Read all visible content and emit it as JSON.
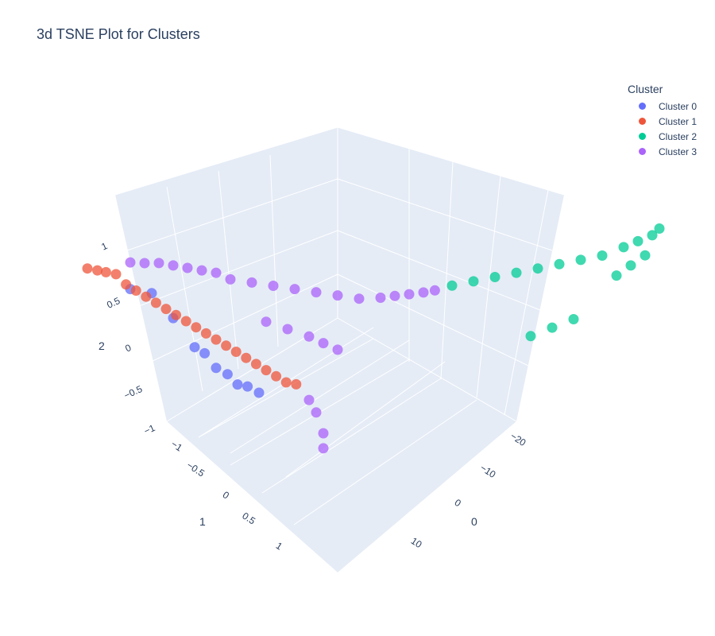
{
  "chart_data": {
    "type": "scatter",
    "title": "3d TSNE Plot for Clusters",
    "legend": {
      "title": "Cluster",
      "placement": "top-right"
    },
    "axes": {
      "tsne1": {
        "title": "0",
        "ticks": [
          "−20",
          "−10",
          "0",
          "10"
        ]
      },
      "tsne2": {
        "title": "1",
        "ticks": [
          "−1",
          "−0.5",
          "0",
          "0.5",
          "1"
        ]
      },
      "tsne3": {
        "title": "2",
        "ticks": [
          "−1",
          "−0.5",
          "0",
          "0.5",
          "1"
        ]
      }
    },
    "grid": true,
    "series": [
      {
        "name": "Cluster 0",
        "color": "#636efa",
        "points": [
          [
            12,
            -0.85,
            0.55
          ],
          [
            10,
            -0.8,
            0.45
          ],
          [
            8,
            -0.75,
            0.1
          ],
          [
            6,
            -0.7,
            -0.3
          ],
          [
            5,
            -0.68,
            -0.4
          ],
          [
            4,
            -0.65,
            -0.6
          ],
          [
            3,
            -0.62,
            -0.7
          ],
          [
            2,
            -0.6,
            -0.85
          ],
          [
            1,
            -0.58,
            -0.9
          ],
          [
            0,
            -0.55,
            -1.0
          ]
        ]
      },
      {
        "name": "Cluster 1",
        "color": "#ef553b",
        "points": [
          [
            16,
            -0.95,
            0.9
          ],
          [
            15,
            -0.93,
            0.85
          ],
          [
            14,
            -0.92,
            0.8
          ],
          [
            13,
            -0.9,
            0.75
          ],
          [
            12,
            -0.88,
            0.6
          ],
          [
            11,
            -0.86,
            0.5
          ],
          [
            10,
            -0.84,
            0.4
          ],
          [
            9,
            -0.82,
            0.3
          ],
          [
            8,
            -0.8,
            0.2
          ],
          [
            7,
            -0.78,
            0.1
          ],
          [
            6,
            -0.76,
            0.0
          ],
          [
            5,
            -0.74,
            -0.1
          ],
          [
            4,
            -0.72,
            -0.2
          ],
          [
            3,
            -0.7,
            -0.3
          ],
          [
            2,
            -0.68,
            -0.4
          ],
          [
            1,
            -0.66,
            -0.5
          ],
          [
            0,
            -0.64,
            -0.6
          ],
          [
            -1,
            -0.62,
            -0.7
          ],
          [
            -2,
            -0.6,
            -0.8
          ],
          [
            -3,
            -0.58,
            -0.9
          ],
          [
            -4,
            -0.56,
            -1.0
          ],
          [
            -5,
            -0.54,
            -1.05
          ]
        ]
      },
      {
        "name": "Cluster 2",
        "color": "#00cc96",
        "points": [
          [
            -6,
            0.5,
            0.3
          ],
          [
            -8,
            0.55,
            0.3
          ],
          [
            -10,
            0.6,
            0.3
          ],
          [
            -12,
            0.65,
            0.3
          ],
          [
            -14,
            0.7,
            0.3
          ],
          [
            -16,
            0.75,
            0.3
          ],
          [
            -18,
            0.8,
            0.3
          ],
          [
            -20,
            0.85,
            0.3
          ],
          [
            -22,
            0.9,
            0.35
          ],
          [
            -23,
            0.95,
            0.4
          ],
          [
            -24,
            1.0,
            0.45
          ],
          [
            -25,
            1.0,
            0.5
          ],
          [
            -24,
            0.95,
            0.2
          ],
          [
            -23,
            0.9,
            0.1
          ],
          [
            -22,
            0.85,
            0.0
          ],
          [
            -15,
            0.9,
            -0.3
          ],
          [
            -13,
            0.85,
            -0.35
          ],
          [
            -11,
            0.8,
            -0.4
          ]
        ]
      },
      {
        "name": "Cluster 3",
        "color": "#ab63fa",
        "points": [
          [
            14,
            -0.75,
            0.95
          ],
          [
            13,
            -0.7,
            0.92
          ],
          [
            12,
            -0.65,
            0.9
          ],
          [
            11,
            -0.6,
            0.85
          ],
          [
            10,
            -0.55,
            0.8
          ],
          [
            9,
            -0.5,
            0.75
          ],
          [
            8,
            -0.45,
            0.7
          ],
          [
            7,
            -0.4,
            0.6
          ],
          [
            6,
            -0.3,
            0.55
          ],
          [
            5,
            -0.2,
            0.5
          ],
          [
            4,
            -0.1,
            0.45
          ],
          [
            3,
            0.0,
            0.4
          ],
          [
            2,
            0.1,
            0.35
          ],
          [
            1,
            0.2,
            0.3
          ],
          [
            0,
            0.3,
            0.3
          ],
          [
            -1,
            0.35,
            0.3
          ],
          [
            -2,
            0.4,
            0.3
          ],
          [
            -3,
            0.45,
            0.3
          ],
          [
            -4,
            0.48,
            0.3
          ],
          [
            6,
            -0.2,
            0.1
          ],
          [
            5,
            -0.1,
            0.0
          ],
          [
            4,
            0.0,
            -0.1
          ],
          [
            3,
            0.05,
            -0.2
          ],
          [
            2,
            0.1,
            -0.3
          ],
          [
            8,
            0.2,
            -0.7
          ],
          [
            9,
            0.3,
            -0.8
          ],
          [
            10,
            0.4,
            -1.0
          ],
          [
            12,
            0.5,
            -1.1
          ]
        ]
      }
    ]
  }
}
